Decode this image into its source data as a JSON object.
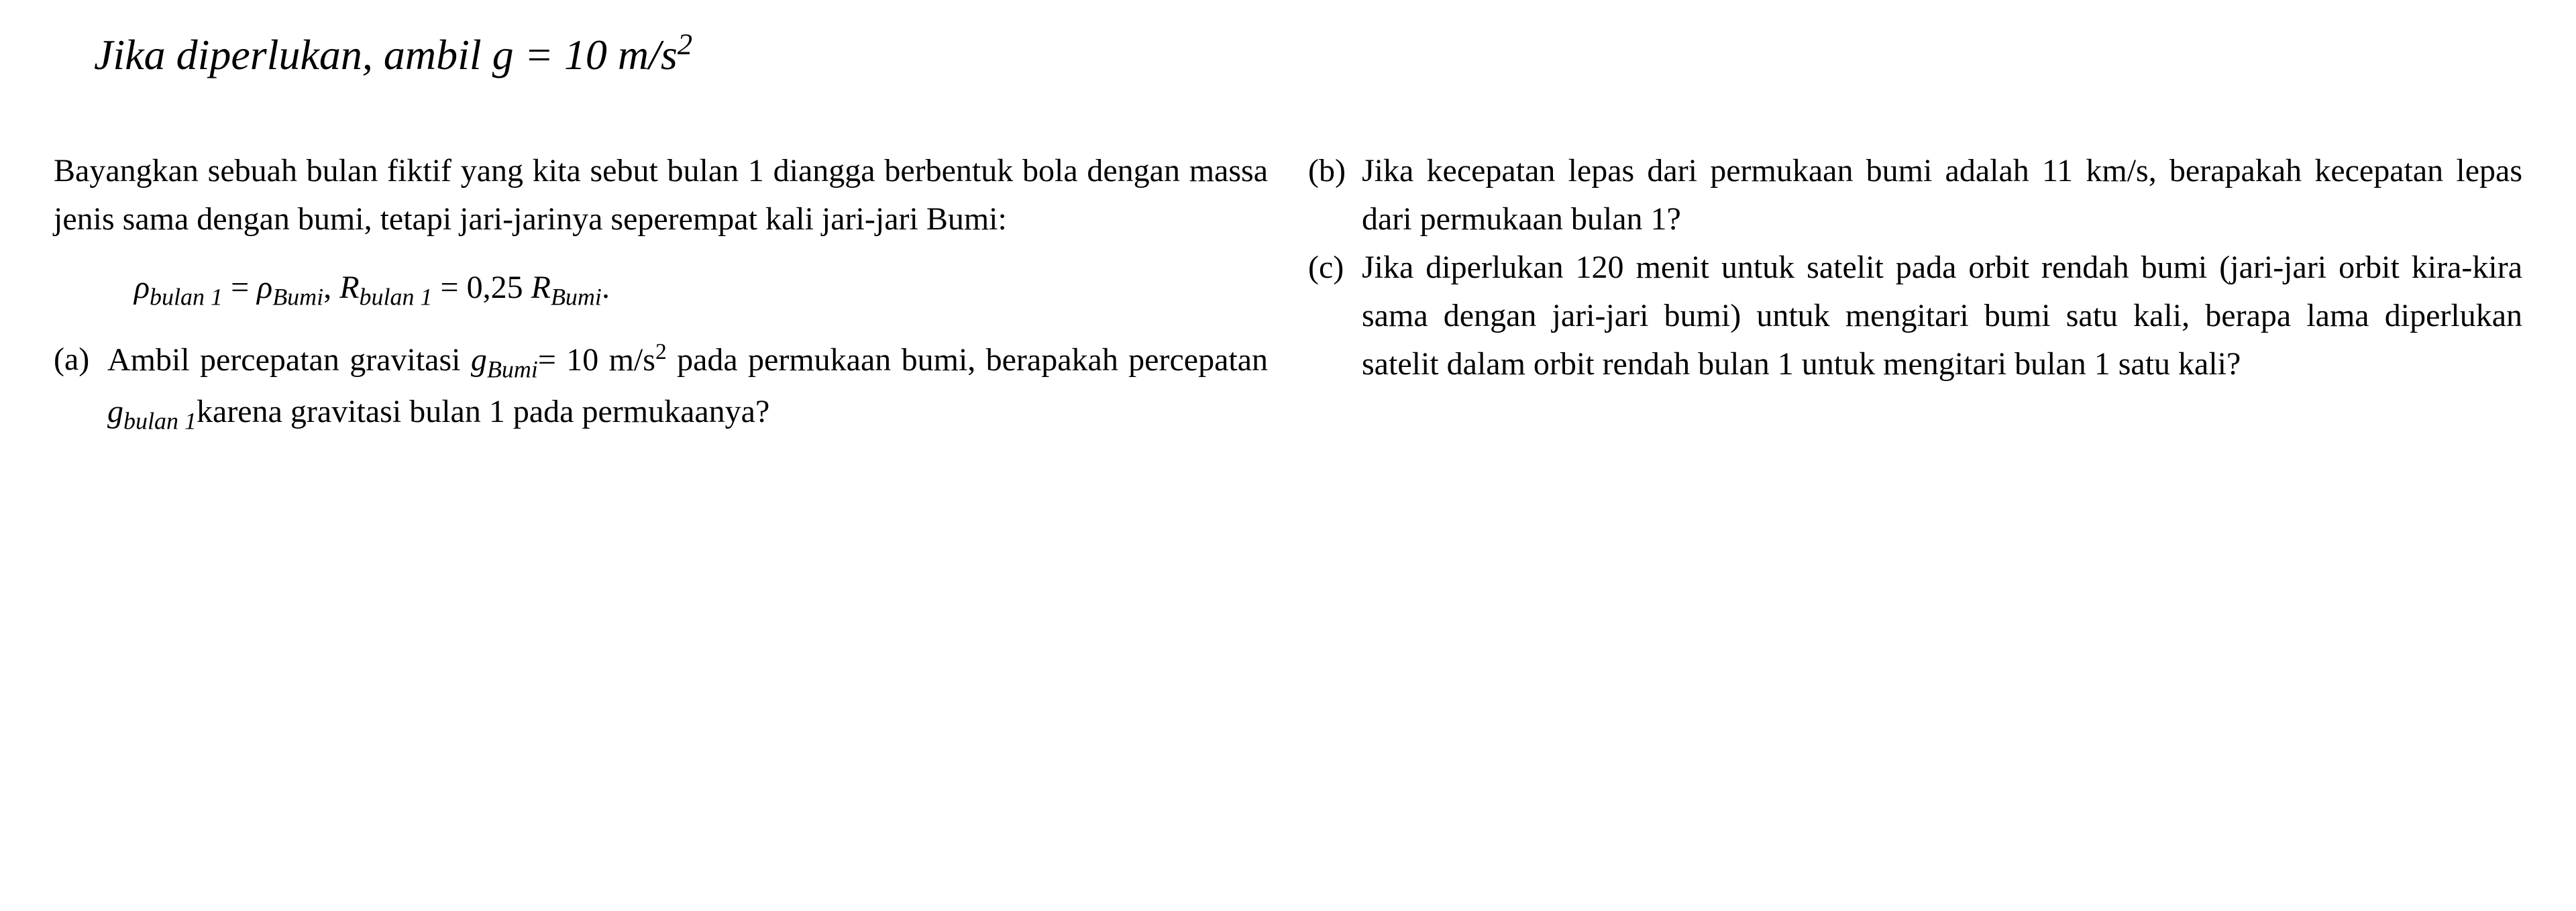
{
  "header": "Jika diperlukan, ambil g = 10 m/s²",
  "intro": {
    "text_before": "Bayangkan sebuah bulan fiktif yang kita sebut bulan 1 diangga berbentuk bola dengan massa jenis sama dengan bumi, tetapi jari-jarinya seperempat kali jari-jari Bumi:",
    "formula_rho": "ρ",
    "formula_sub_bulan1": "bulan 1",
    "formula_eq": " = ",
    "formula_sub_bumi": "Bumi",
    "formula_comma": ", ",
    "formula_R": "R",
    "formula_val": " = 0,25 ",
    "formula_period": "."
  },
  "questions": {
    "a": {
      "label": "(a)",
      "text_1": "Ambil percepatan gravitasi ",
      "g_var": "g",
      "g_sub_bumi": "Bumi",
      "text_2": "= 10 m/s",
      "text_3": " pada permukaan bumi, berapakah percepatan ",
      "g_sub_bulan": "bulan 1",
      "text_4": "karena gravitasi bulan 1 pada permukaanya?"
    },
    "b": {
      "label": "(b)",
      "text": "Jika kecepatan lepas dari permukaan bumi adalah 11 km/s, berapakah kecepatan lepas dari permukaan bulan 1?"
    },
    "c": {
      "label": "(c)",
      "text": "Jika diperlukan 120 menit untuk satelit pada orbit rendah bumi (jari-jari orbit kira-kira sama dengan jari-jari bumi) untuk mengitari bumi satu kali, berapa lama diperlukan satelit dalam orbit rendah bulan 1 untuk mengitari bulan 1 satu kali?"
    }
  },
  "style": {
    "background_color": "#ffffff",
    "text_color": "#000000",
    "font_family": "Times New Roman",
    "header_fontsize": 64,
    "body_fontsize": 48,
    "header_style": "italic"
  }
}
